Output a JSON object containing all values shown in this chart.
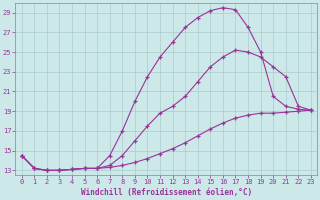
{
  "bg_color": "#cde8e8",
  "grid_color": "#aacccc",
  "line_color": "#993399",
  "xlabel": "Windchill (Refroidissement éolien,°C)",
  "xlim_min": -0.5,
  "xlim_max": 23.5,
  "ylim_min": 12.5,
  "ylim_max": 30.0,
  "yticks": [
    13,
    15,
    17,
    19,
    21,
    23,
    25,
    27,
    29
  ],
  "xticks": [
    0,
    1,
    2,
    3,
    4,
    5,
    6,
    7,
    8,
    9,
    10,
    11,
    12,
    13,
    14,
    15,
    16,
    17,
    18,
    19,
    20,
    21,
    22,
    23
  ],
  "curve1_x": [
    0,
    1,
    2,
    3,
    4,
    5,
    6,
    7,
    8,
    9,
    10,
    11,
    12,
    13,
    14,
    15,
    16,
    17,
    18,
    19,
    20,
    21,
    22,
    23
  ],
  "curve1_y": [
    14.5,
    13.2,
    13.0,
    13.0,
    13.1,
    13.2,
    13.2,
    13.3,
    13.5,
    13.8,
    14.2,
    14.7,
    15.2,
    15.8,
    16.5,
    17.2,
    17.8,
    18.3,
    18.6,
    18.8,
    18.8,
    18.9,
    19.0,
    19.1
  ],
  "curve2_x": [
    0,
    1,
    2,
    3,
    4,
    5,
    6,
    7,
    8,
    9,
    10,
    11,
    12,
    13,
    14,
    15,
    16,
    17,
    18,
    19,
    20,
    21,
    22,
    23
  ],
  "curve2_y": [
    14.5,
    13.2,
    13.0,
    13.0,
    13.1,
    13.2,
    13.2,
    13.5,
    14.5,
    16.0,
    17.5,
    18.8,
    19.5,
    20.5,
    22.0,
    23.5,
    24.5,
    25.2,
    25.0,
    24.5,
    23.5,
    22.5,
    19.5,
    19.1
  ],
  "curve3_x": [
    0,
    1,
    2,
    3,
    4,
    5,
    6,
    7,
    8,
    9,
    10,
    11,
    12,
    13,
    14,
    15,
    16,
    17,
    18,
    19,
    20,
    21,
    22,
    23
  ],
  "curve3_y": [
    14.5,
    13.2,
    13.0,
    13.0,
    13.1,
    13.2,
    13.2,
    14.5,
    17.0,
    20.0,
    22.5,
    24.5,
    26.0,
    27.5,
    28.5,
    29.2,
    29.5,
    29.3,
    27.5,
    25.0,
    20.5,
    19.5,
    19.2,
    19.1
  ]
}
